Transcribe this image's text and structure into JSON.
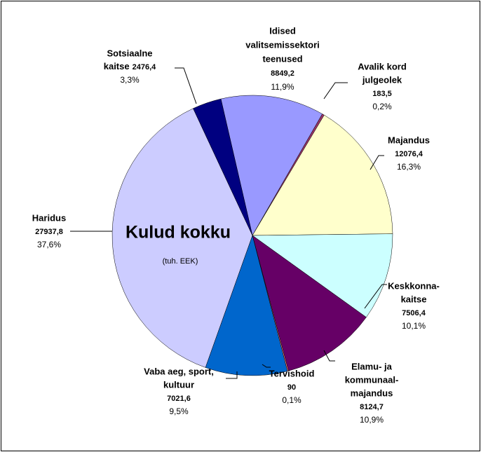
{
  "chart_data": {
    "type": "pie",
    "title": "Kulud kokku",
    "subtitle": "(tuh. EEK)",
    "categories": [
      [
        "Idised",
        "valitsemissektori",
        "teenused"
      ],
      [
        "Avalik kord",
        "julgeolek"
      ],
      [
        "Majandus"
      ],
      [
        "Keskkonna-",
        "kaitse"
      ],
      [
        "Elamu-   ja",
        "kommunaal-",
        "majandus"
      ],
      [
        "Tervishoid"
      ],
      [
        "Vaba aeg, sport,",
        "kultuur"
      ],
      [
        "Haridus"
      ],
      [
        "Sotsiaalne",
        "kaitse"
      ]
    ],
    "values": [
      8849.2,
      183.5,
      12076.4,
      7506.4,
      8124.7,
      90,
      7021.6,
      27937.8,
      2476.4
    ],
    "value_labels": [
      "8849,2",
      "183,5",
      "12076,4",
      "7506,4",
      "8124,7",
      "90",
      "7021,6",
      "27937,8",
      "2476,4"
    ],
    "percents": [
      11.9,
      0.2,
      16.3,
      10.1,
      10.9,
      0.1,
      9.5,
      37.6,
      3.3
    ],
    "percent_labels": [
      "11,9%",
      "0,2%",
      "16,3%",
      "10,1%",
      "10,9%",
      "0,1%",
      "9,5%",
      "37,6%",
      "3,3%"
    ],
    "colors": [
      "#9999ff",
      "#993366",
      "#ffffcc",
      "#ccffff",
      "#660066",
      "#ff8080",
      "#0066cc",
      "#ccccff",
      "#000080"
    ]
  }
}
